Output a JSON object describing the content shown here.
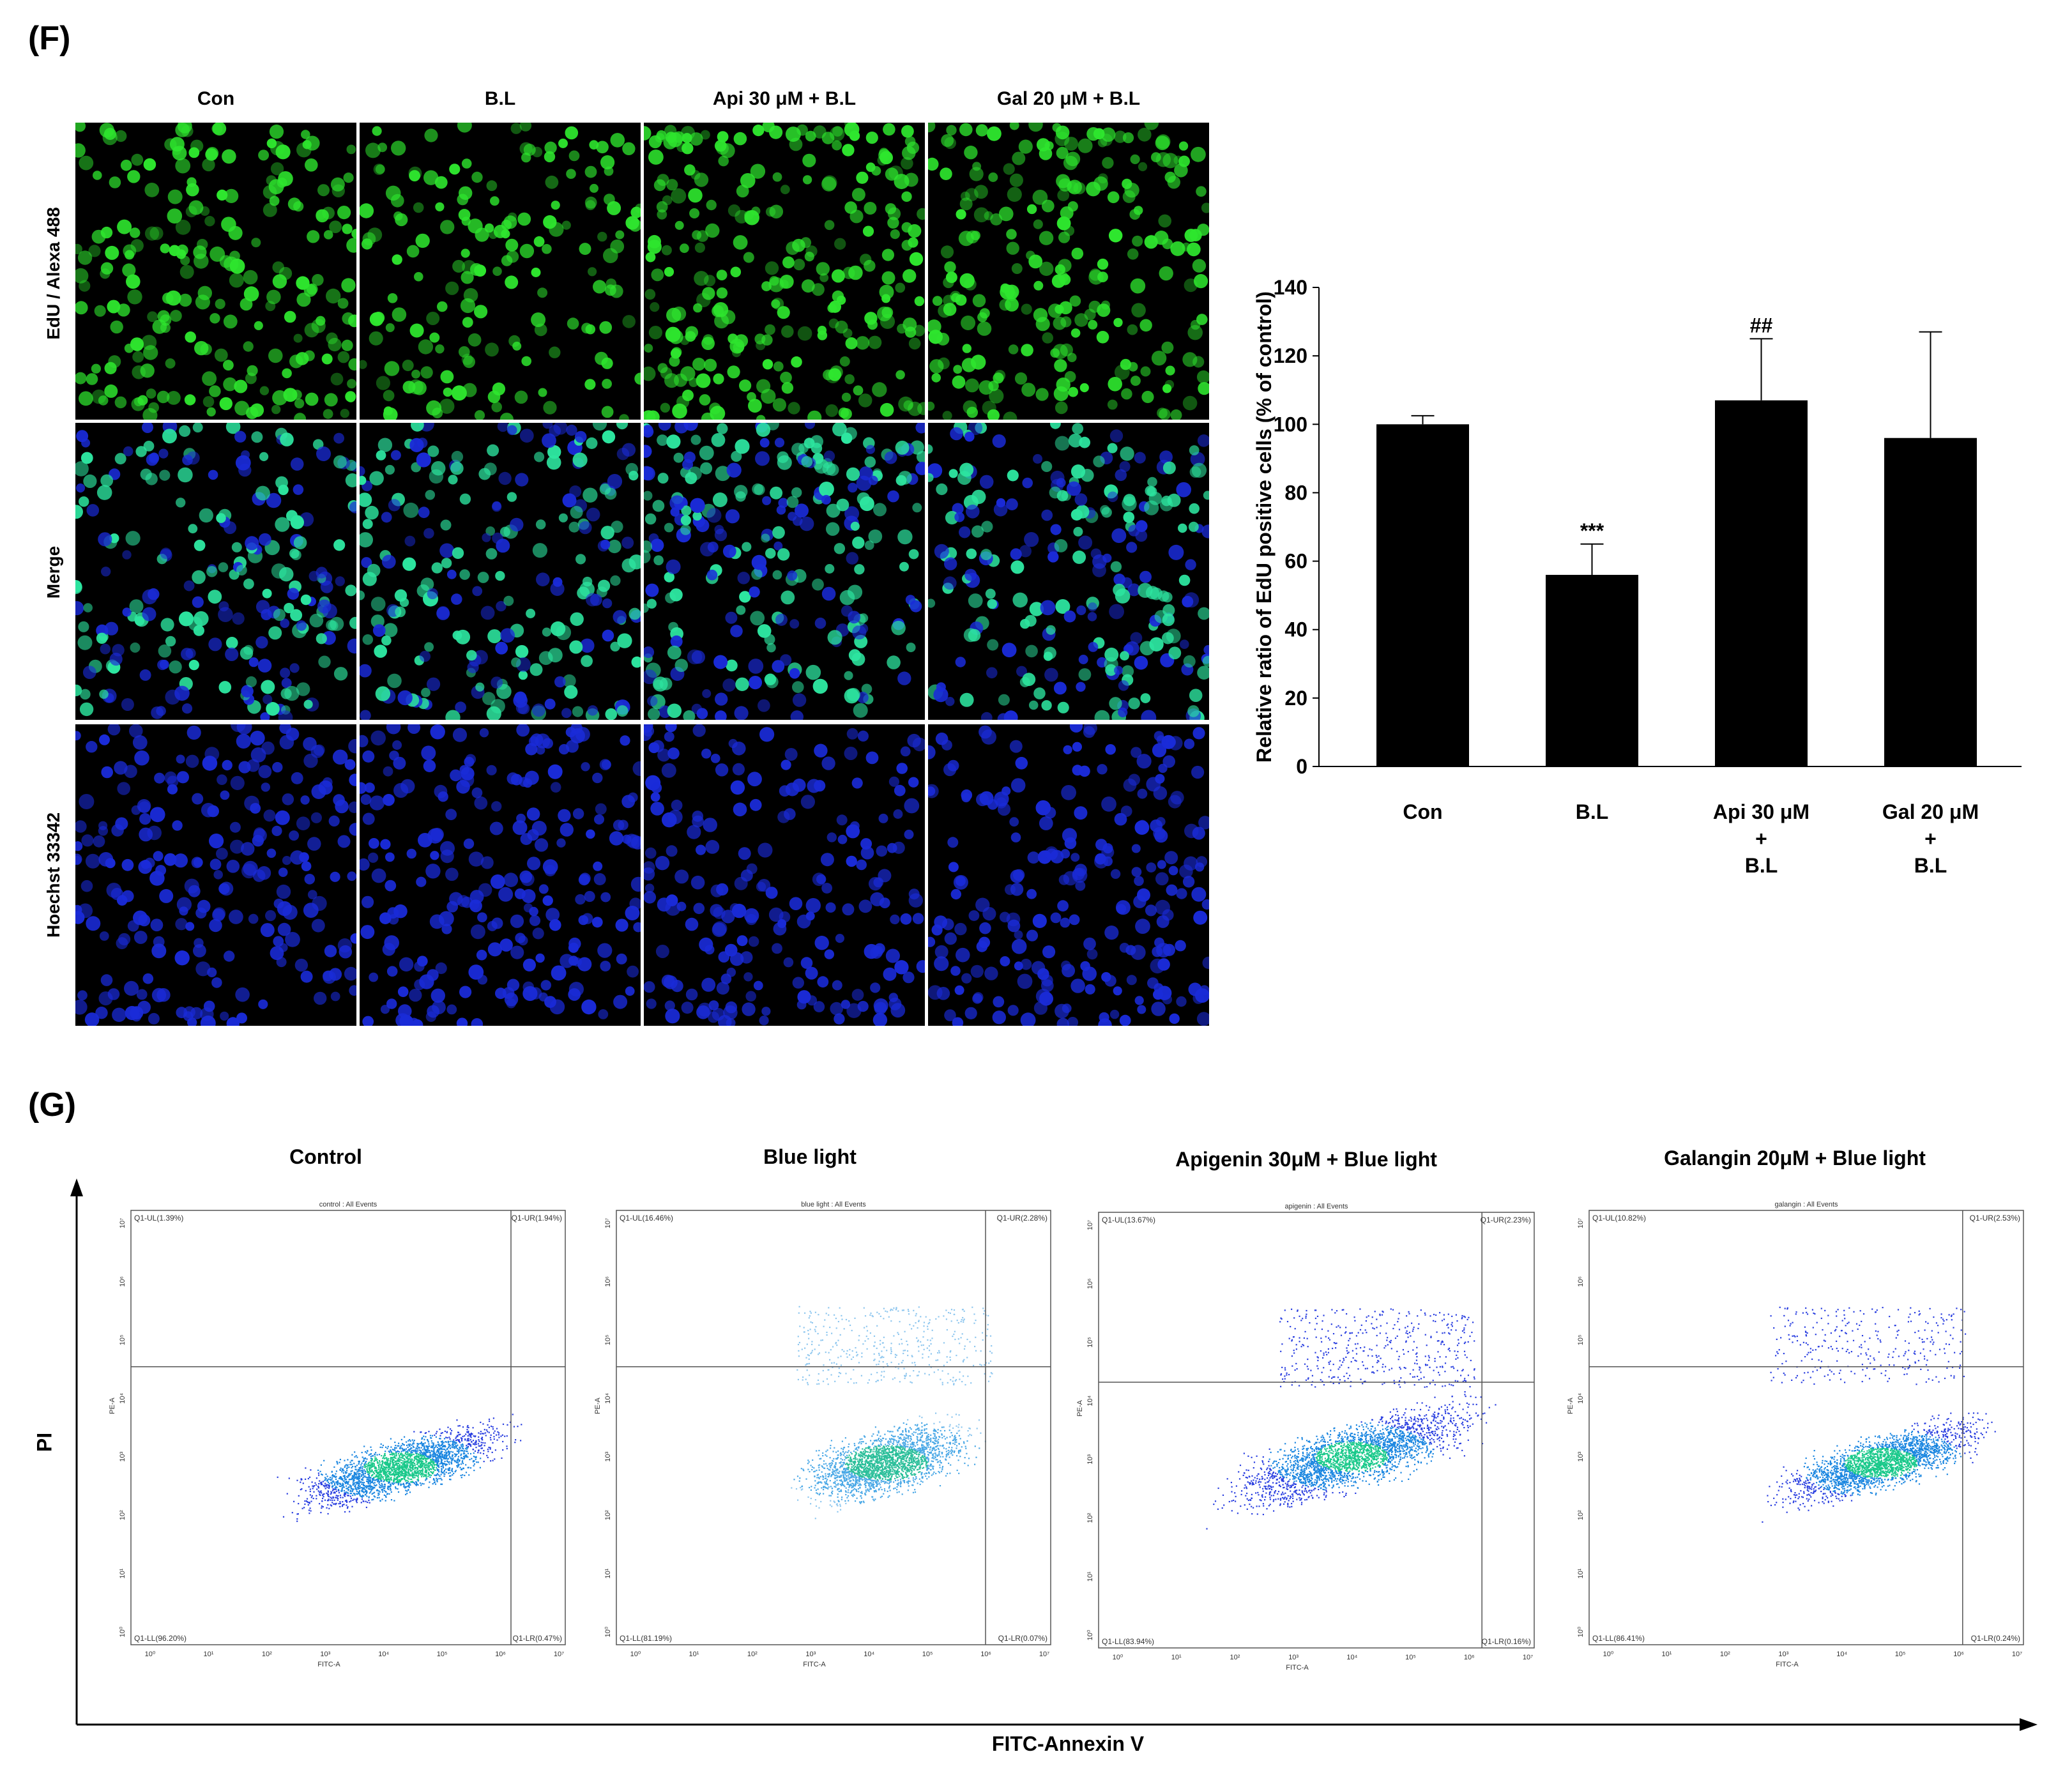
{
  "panel_f": {
    "letter": "(F)",
    "column_headers": [
      "Con",
      "B.L",
      "Api 30 μM + B.L",
      "Gal 20 μM + B.L"
    ],
    "row_headers": [
      "EdU / Alexa 488",
      "Merge",
      "Hoechst 33342"
    ],
    "stain_colors": {
      "edu": "#2ee62e",
      "hoechst": "#1a2bd8",
      "merge_nucleus": "#2de6a0"
    }
  },
  "panel_g": {
    "letter": "(G)",
    "y_axis_label": "PI",
    "x_axis_label": "FITC-Annexin V",
    "plots": [
      {
        "title": "Control",
        "subtitle": "control : All Events",
        "ul": "Q1-UL(1.39%)",
        "ur": "Q1-UR(1.94%)",
        "ll": "Q1-LL(96.20%)",
        "lr": "Q1-LR(0.47%)",
        "x_label": "FITC-A",
        "y_label": "PE-A"
      },
      {
        "title": "Blue light",
        "subtitle": "blue light : All Events",
        "ul": "Q1-UL(16.46%)",
        "ur": "Q1-UR(2.28%)",
        "ll": "Q1-LL(81.19%)",
        "lr": "Q1-LR(0.07%)",
        "x_label": "FITC-A",
        "y_label": "PE-A"
      },
      {
        "title": "Apigenin 30μM + Blue light",
        "subtitle": "apigenin : All Events",
        "ul": "Q1-UL(13.67%)",
        "ur": "Q1-UR(2.23%)",
        "ll": "Q1-LL(83.94%)",
        "lr": "Q1-LR(0.16%)",
        "x_label": "FITC-A",
        "y_label": "PE-A"
      },
      {
        "title": "Galangin 20μM + Blue light",
        "subtitle": "galangin : All Events",
        "ul": "Q1-UL(10.82%)",
        "ur": "Q1-UR(2.53%)",
        "ll": "Q1-LL(86.41%)",
        "lr": "Q1-LR(0.24%)",
        "x_label": "FITC-A",
        "y_label": "PE-A"
      }
    ],
    "log_ticks": [
      "10⁰",
      "10¹",
      "10²",
      "10³",
      "10⁴",
      "10⁵",
      "10⁶",
      "10⁷"
    ]
  },
  "chart_data": {
    "type": "bar",
    "categories": [
      "Con",
      "B.L",
      "Api 30 μM\n+\nB.L",
      "Gal 20 μM\n+\nB.L"
    ],
    "values": [
      100,
      56,
      107,
      96
    ],
    "errors": [
      2.5,
      9,
      18,
      31
    ],
    "annotations": [
      "",
      "***",
      "##",
      ""
    ],
    "ylabel": "Relative ratio of EdU positive cells (% of control)",
    "xlabel": "",
    "ylim": [
      0,
      140
    ],
    "yticks": [
      "0",
      "20",
      "40",
      "60",
      "80",
      "100",
      "120",
      "140"
    ],
    "bar_color": "#000000"
  }
}
